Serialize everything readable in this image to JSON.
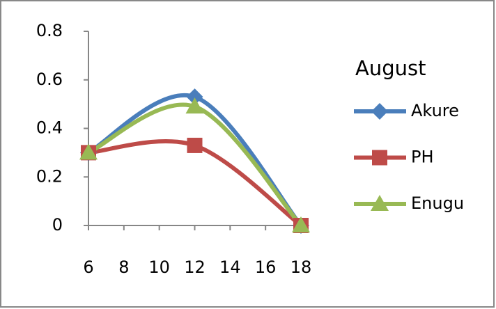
{
  "chart_data": {
    "type": "line",
    "legend_title": "August",
    "x": [
      6,
      12,
      18
    ],
    "series": [
      {
        "name": "Akure",
        "color": "#4a7ebb",
        "marker": "diamond",
        "values": [
          0.3,
          0.53,
          0
        ]
      },
      {
        "name": "PH",
        "color": "#be4b48",
        "marker": "square",
        "values": [
          0.3,
          0.33,
          0
        ]
      },
      {
        "name": "Enugu",
        "color": "#98b954",
        "marker": "triangle",
        "values": [
          0.3,
          0.49,
          0
        ]
      }
    ],
    "xlim": [
      6,
      18
    ],
    "xticks": [
      6,
      8,
      10,
      12,
      14,
      16,
      18
    ],
    "ylim": [
      0,
      0.8
    ],
    "yticks": [
      0,
      0.2,
      0.4,
      0.6,
      0.8
    ],
    "smooth": true,
    "legend": "right"
  }
}
